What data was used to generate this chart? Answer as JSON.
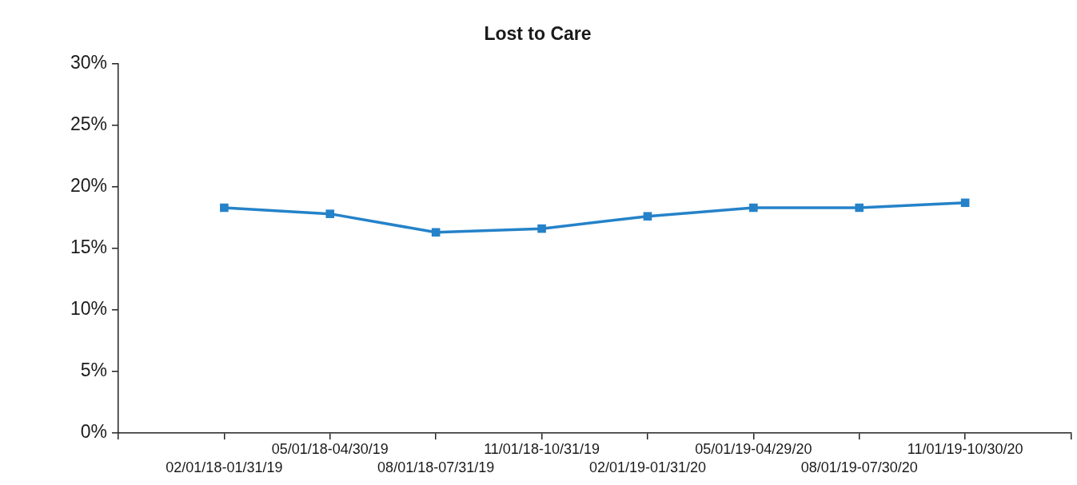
{
  "chart_data": {
    "type": "line",
    "title": "Lost to Care",
    "categories": [
      "02/01/18-01/31/19",
      "05/01/18-04/30/19",
      "08/01/18-07/31/19",
      "11/01/18-10/31/19",
      "02/01/19-01/31/20",
      "05/01/19-04/29/20",
      "08/01/19-07/30/20",
      "11/01/19-10/30/20"
    ],
    "series": [
      {
        "color": "#2582c9",
        "values": [
          18.3,
          17.8,
          16.3,
          16.6,
          17.6,
          18.3,
          18.3,
          18.7
        ]
      }
    ],
    "ylim": [
      0,
      30
    ],
    "yticks": [
      {
        "value": 0,
        "label": "0%"
      },
      {
        "value": 5,
        "label": "5%"
      },
      {
        "value": 10,
        "label": "10%"
      },
      {
        "value": 15,
        "label": "15%"
      },
      {
        "value": 20,
        "label": "20%"
      },
      {
        "value": 25,
        "label": "25%"
      },
      {
        "value": 30,
        "label": "30%"
      }
    ],
    "marker": "square",
    "line_style": "solid"
  }
}
